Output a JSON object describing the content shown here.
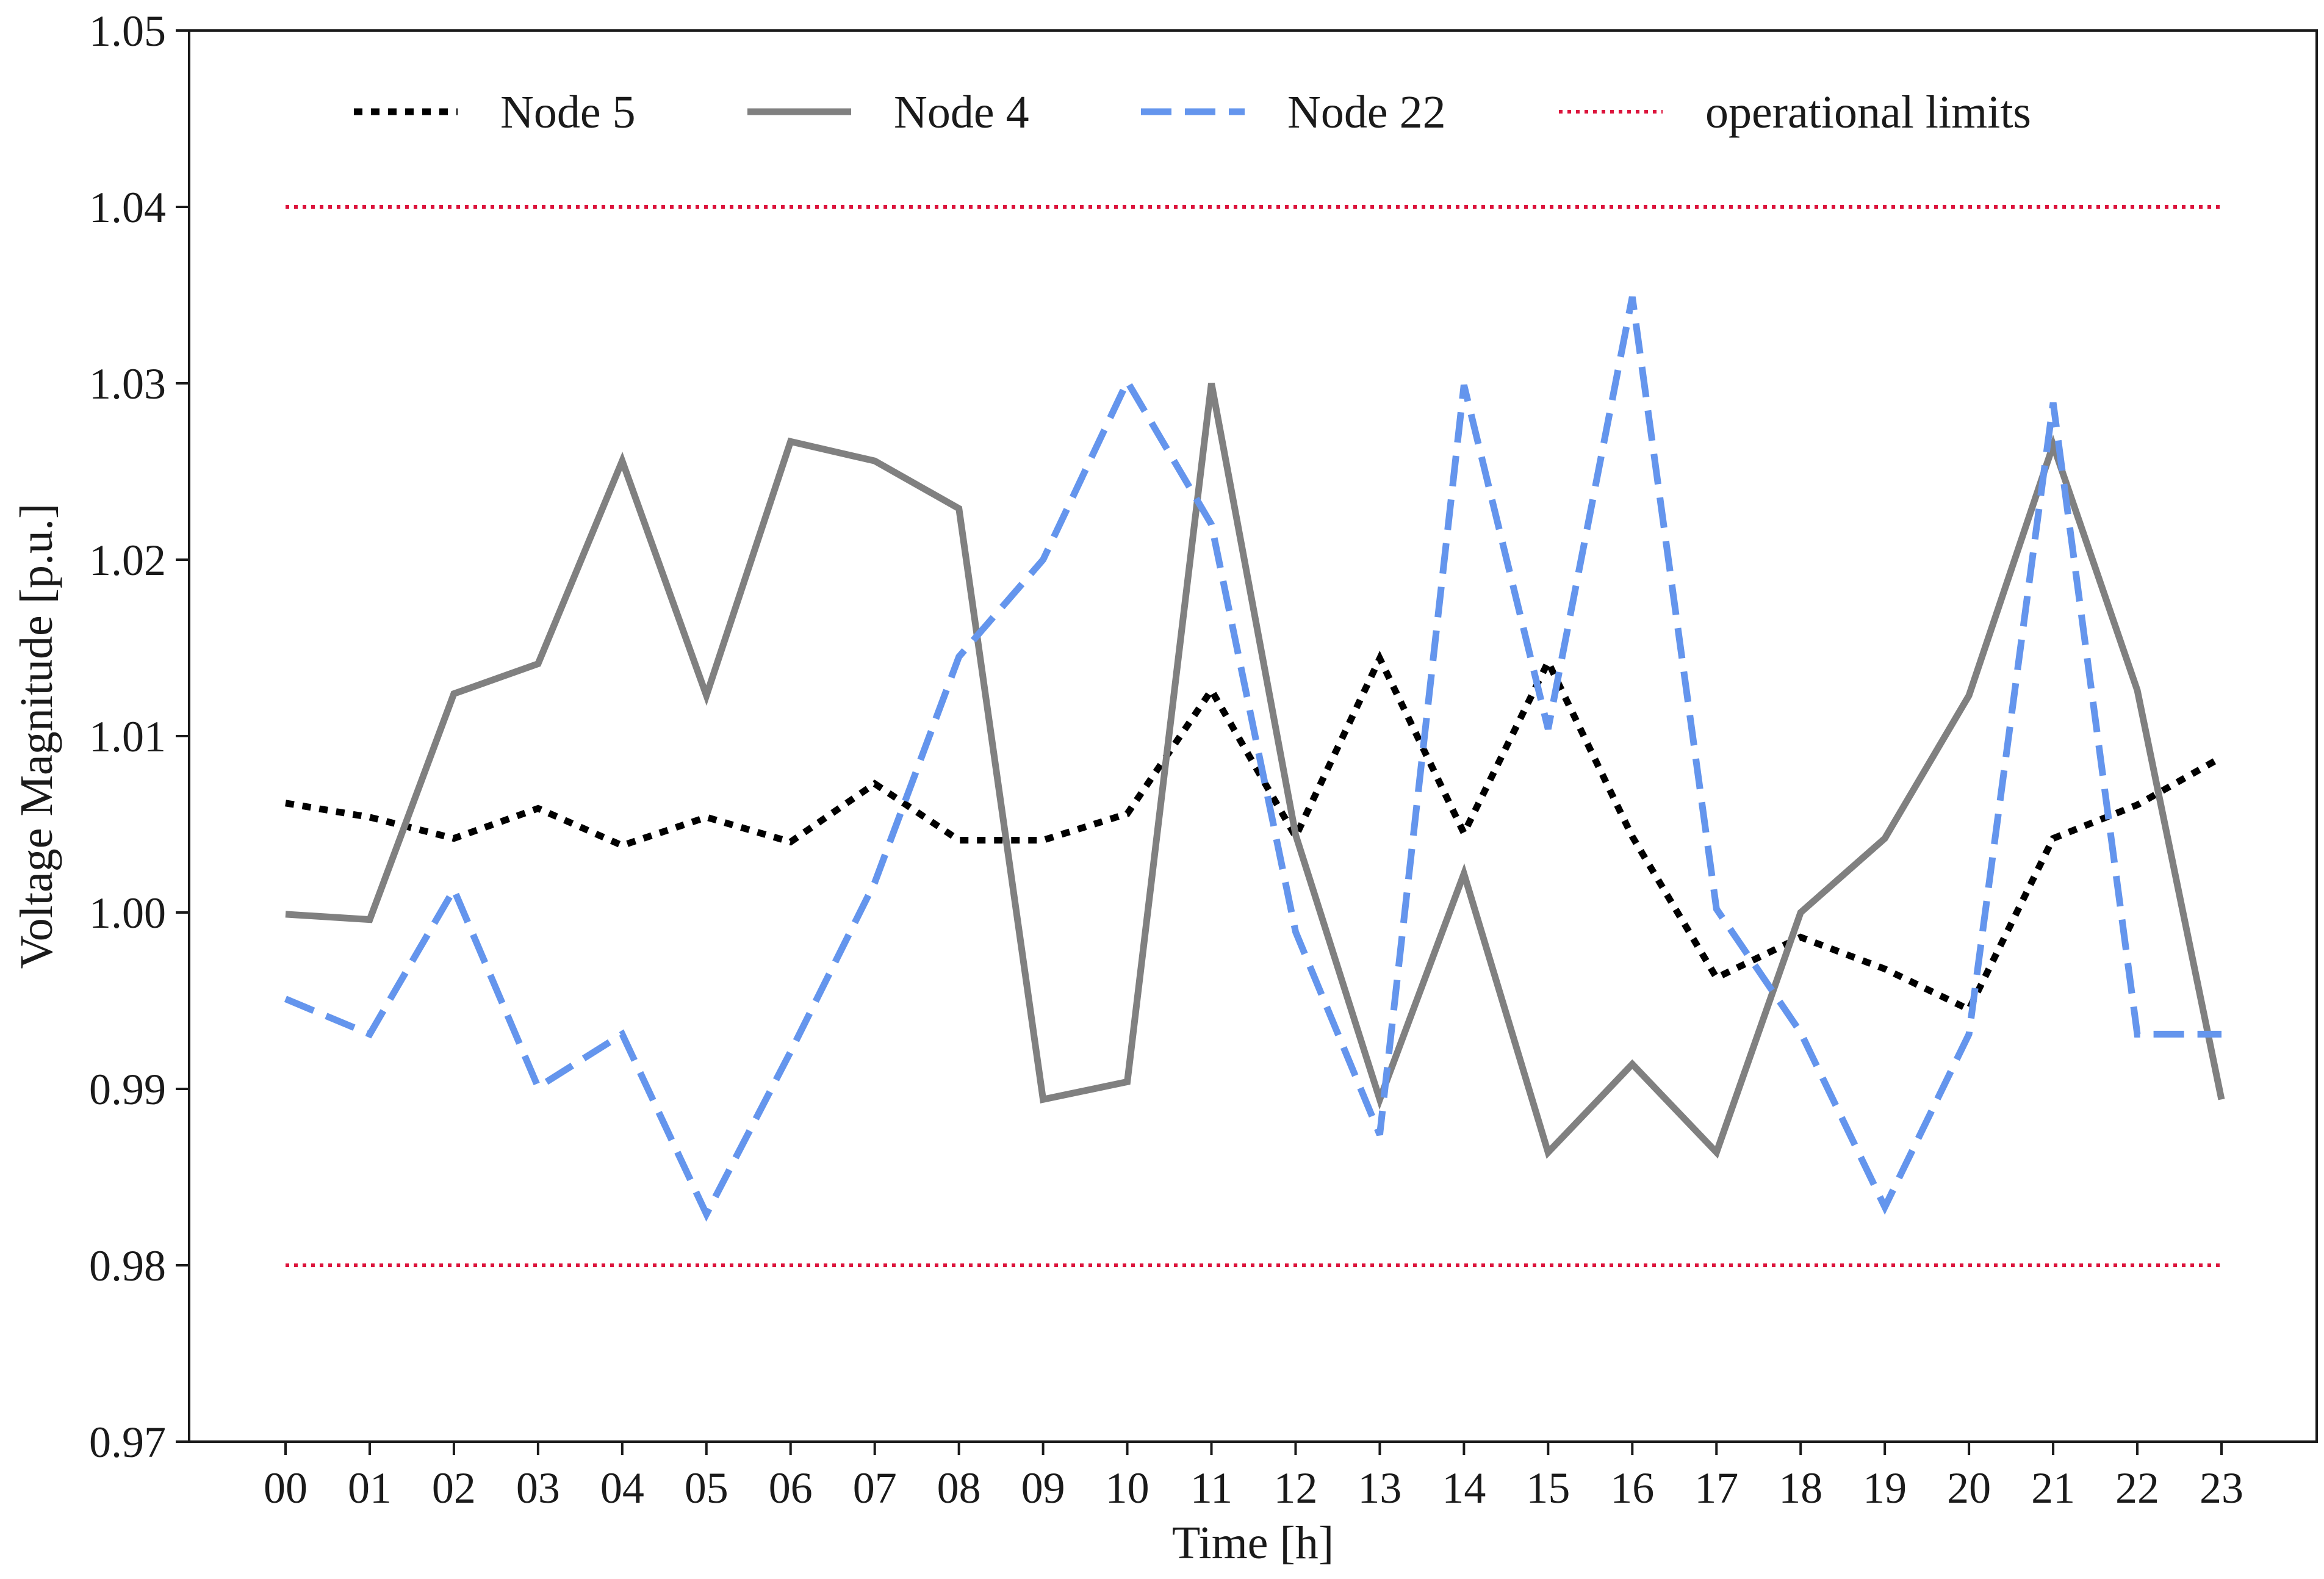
{
  "chart_data": {
    "type": "line",
    "xlabel": "Time [h]",
    "ylabel": "Voltage Magnitude [p.u.]",
    "ylim": [
      0.97,
      1.05
    ],
    "yticks": [
      "0.97",
      "0.98",
      "0.99",
      "1.00",
      "1.01",
      "1.02",
      "1.03",
      "1.04",
      "1.05"
    ],
    "categories": [
      "00",
      "01",
      "02",
      "03",
      "04",
      "05",
      "06",
      "07",
      "08",
      "09",
      "10",
      "11",
      "12",
      "13",
      "14",
      "15",
      "16",
      "17",
      "18",
      "19",
      "20",
      "21",
      "22",
      "23"
    ],
    "grid": false,
    "legend_position": "top",
    "series": [
      {
        "name": "Node 5",
        "style": "dotted",
        "color": "#000000",
        "values": [
          1.0062,
          1.0054,
          1.0042,
          1.0059,
          1.0038,
          1.0054,
          1.004,
          1.0073,
          1.0041,
          1.0041,
          1.0056,
          1.0126,
          1.0043,
          1.0144,
          1.0045,
          1.0142,
          1.0043,
          0.9963,
          0.9986,
          0.9968,
          0.9945,
          1.0042,
          1.0061,
          1.0088
        ]
      },
      {
        "name": "Node 4",
        "style": "solid",
        "color": "#808080",
        "values": [
          0.9999,
          0.9996,
          1.0124,
          1.0141,
          1.0256,
          1.0123,
          1.0267,
          1.0256,
          1.0229,
          0.9894,
          0.9904,
          1.03,
          1.0044,
          0.9894,
          1.0022,
          0.9864,
          0.9914,
          0.9864,
          1.0,
          1.0042,
          1.0123,
          1.0265,
          1.0126,
          0.9894
        ]
      },
      {
        "name": "Node 22",
        "style": "dashed",
        "color": "#6495ED",
        "values": [
          0.9951,
          0.9931,
          1.0013,
          0.9901,
          0.9931,
          0.9829,
          0.9921,
          1.0017,
          1.0145,
          1.02,
          1.0301,
          1.022,
          0.9989,
          0.9874,
          1.0299,
          1.0104,
          1.0349,
          1.0002,
          0.9932,
          0.9833,
          0.9931,
          1.0289,
          0.9931,
          0.9931
        ]
      }
    ],
    "limits": {
      "name": "operational limits",
      "style": "dotted",
      "color": "#DC143C",
      "values": [
        0.98,
        1.04
      ]
    }
  }
}
